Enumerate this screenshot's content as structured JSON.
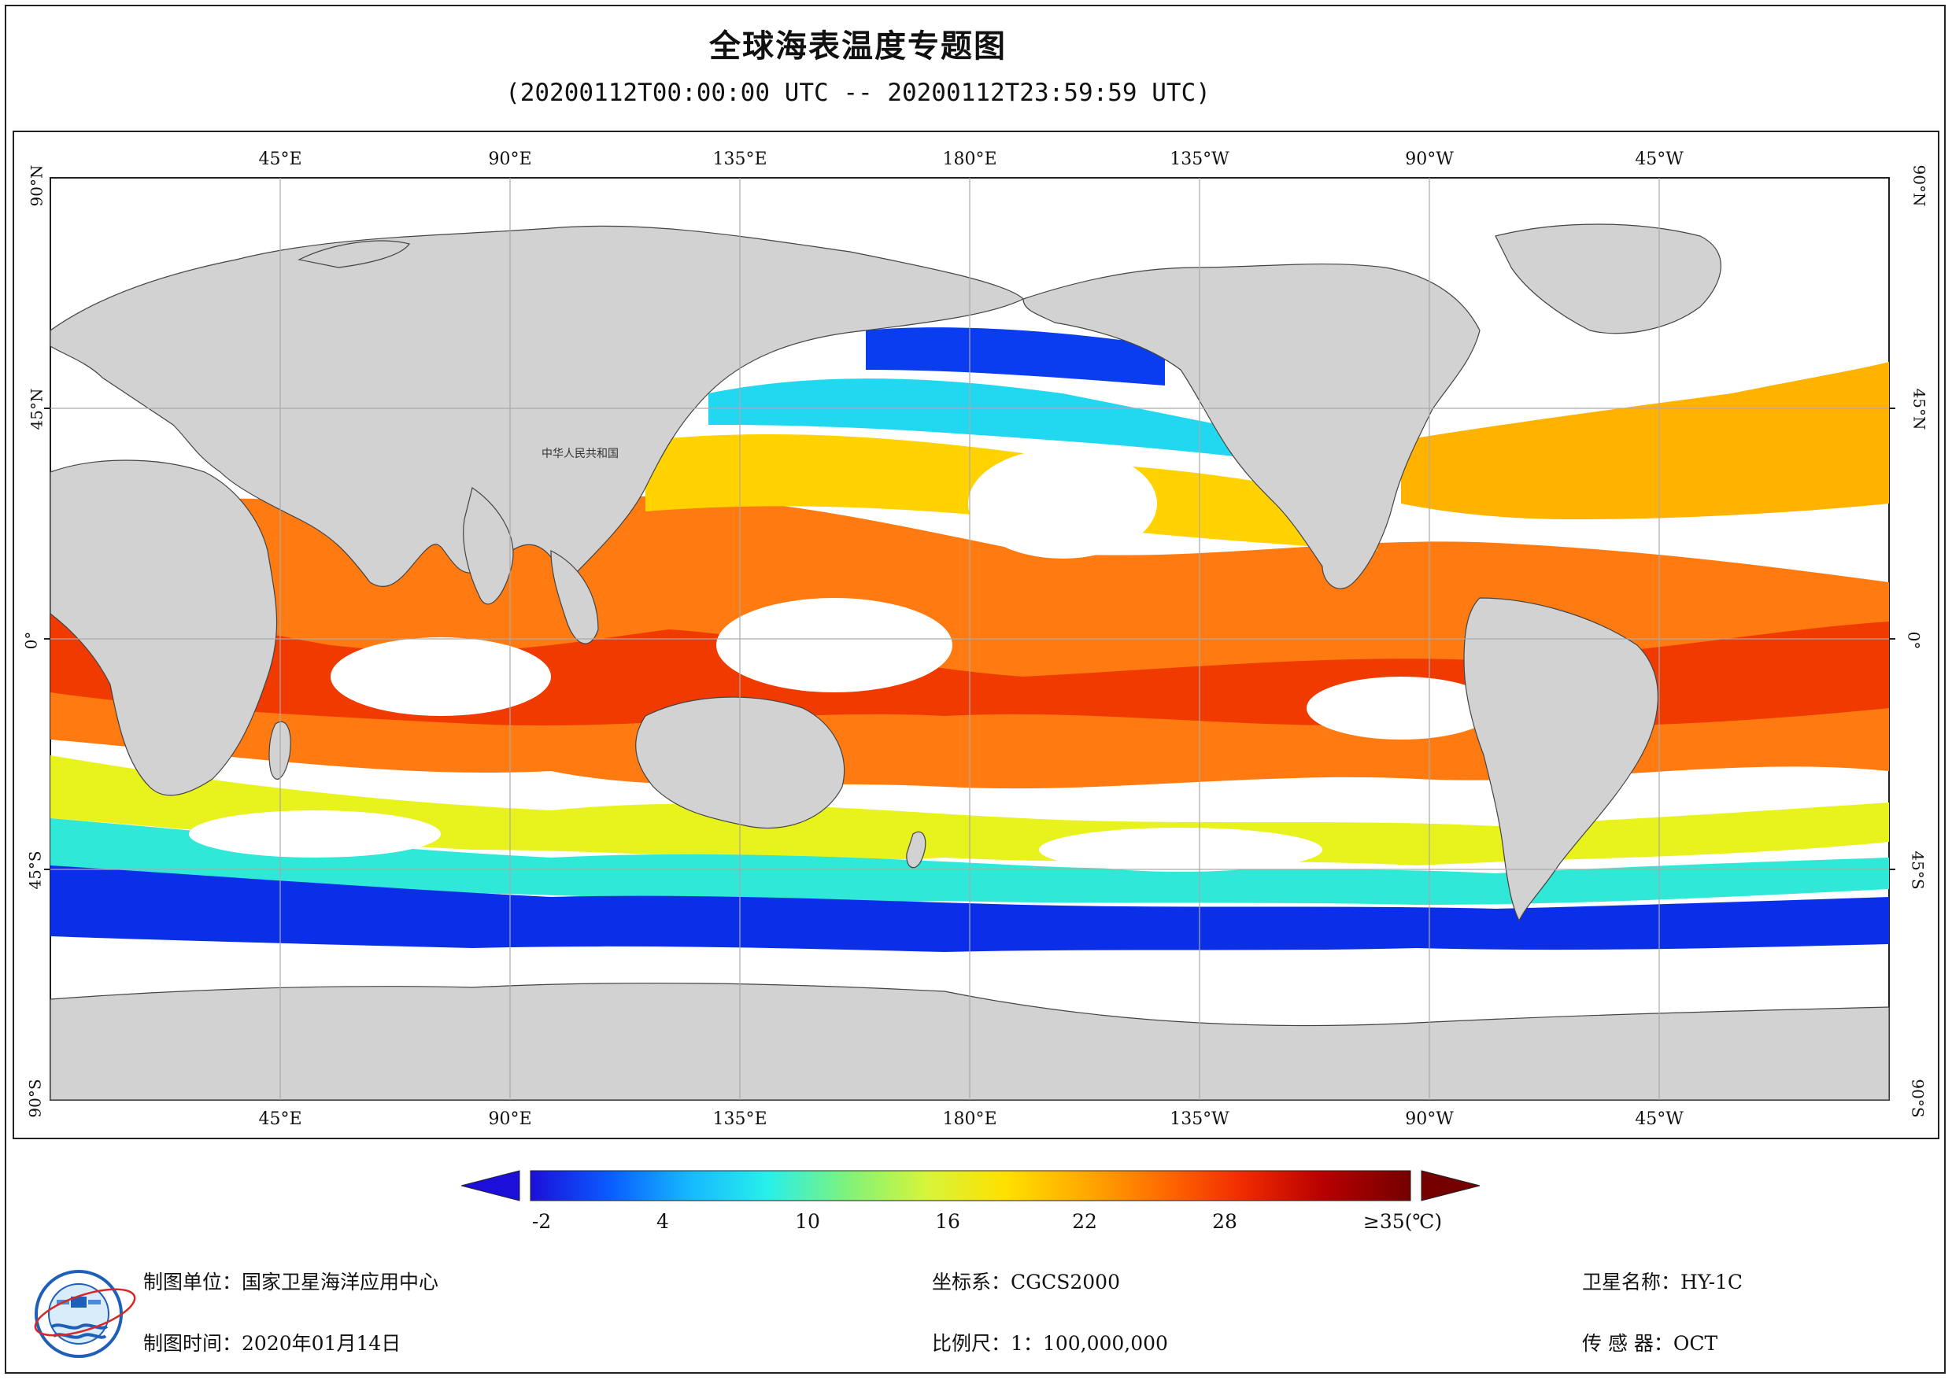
{
  "header": {
    "title": "全球海表温度专题图",
    "subtitle": "(20200112T00:00:00 UTC -- 20200112T23:59:59 UTC)"
  },
  "map": {
    "longitude_labels": [
      "45°E",
      "90°E",
      "135°E",
      "180°E",
      "135°W",
      "90°W",
      "45°W"
    ],
    "latitude_labels": [
      "90°N",
      "45°N",
      "0°",
      "45°S",
      "90°S"
    ],
    "country_label": "中华人民共和国",
    "colors": {
      "land": "#d2d2d2",
      "no_data": "#ffffff",
      "graticule": "#aaaaaa"
    }
  },
  "legend": {
    "tick_labels": [
      "-2",
      "4",
      "10",
      "16",
      "22",
      "28",
      "≥35(℃)"
    ],
    "min": -2,
    "max": 35,
    "unit": "℃",
    "colors": [
      "#1c0fd9",
      "#0a5cff",
      "#16b8ff",
      "#28f0ea",
      "#7ff27a",
      "#e9f51d",
      "#ffcc00",
      "#ff9500",
      "#ff5a00",
      "#e71800",
      "#a30000",
      "#740000"
    ]
  },
  "footer": {
    "unit_label": "制图单位：",
    "unit_value": "国家卫星海洋应用中心",
    "time_label": "制图时间：",
    "time_value": "2020年01月14日",
    "crs_label": "坐标系：",
    "crs_value": "CGCS2000",
    "scale_label": "比例尺：",
    "scale_value": "1：100,000,000",
    "satellite_label": "卫星名称：",
    "satellite_value": "HY-1C",
    "sensor_label": "传 感 器：",
    "sensor_value": "OCT"
  },
  "logo": {
    "icon": "satellite-ocean-center-logo"
  }
}
